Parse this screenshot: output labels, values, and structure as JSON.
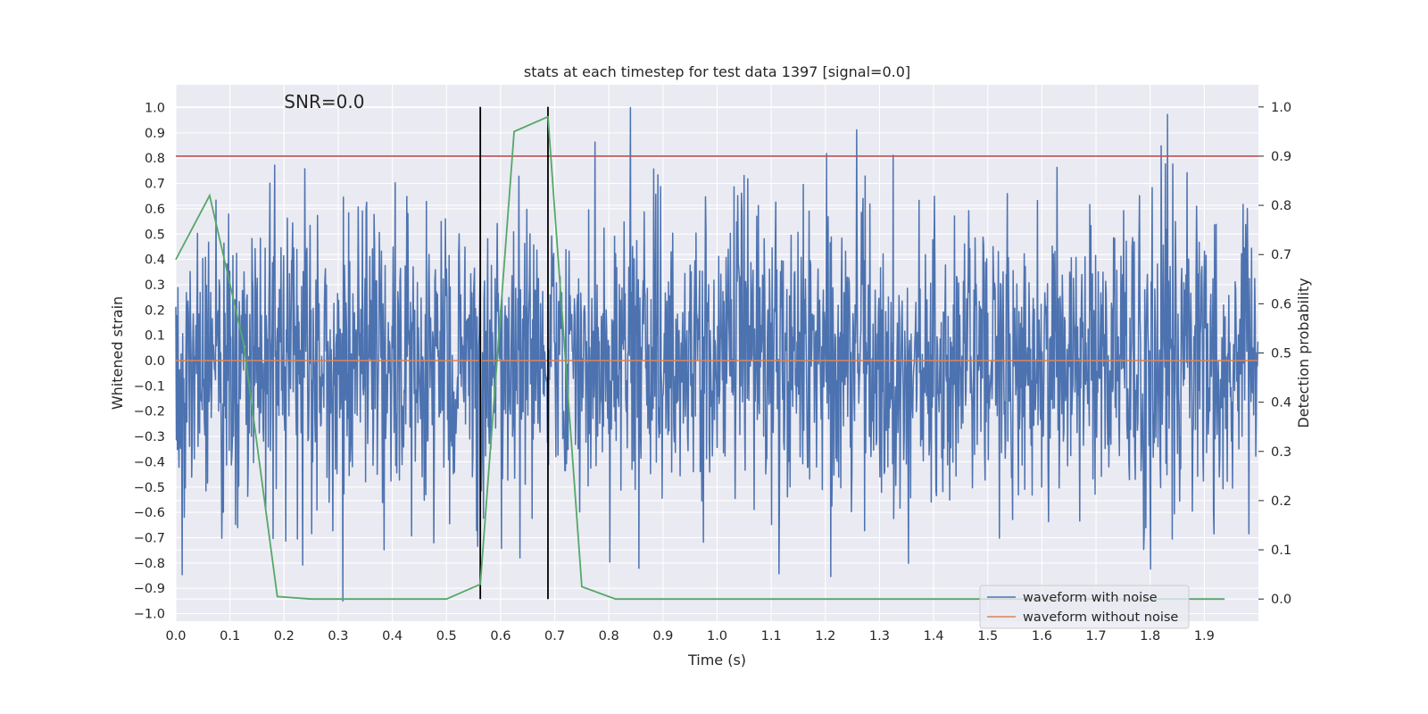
{
  "chart_data": {
    "type": "line",
    "title": "stats at each timestep for test data 1397 [signal=0.0]",
    "xlabel": "Time (s)",
    "ylabel": "Whitened strain",
    "y2label": "Detection probability",
    "xlim": [
      0.0,
      2.0
    ],
    "ylim": [
      -1.03,
      1.09
    ],
    "y2lim": [
      -0.045,
      1.045
    ],
    "xticks": [
      "0.0",
      "0.1",
      "0.2",
      "0.3",
      "0.4",
      "0.5",
      "0.6",
      "0.7",
      "0.8",
      "0.9",
      "1.0",
      "1.1",
      "1.2",
      "1.3",
      "1.4",
      "1.5",
      "1.6",
      "1.7",
      "1.8",
      "1.9"
    ],
    "yticks": [
      "1.0",
      "0.9",
      "0.8",
      "0.7",
      "0.6",
      "0.5",
      "0.4",
      "0.3",
      "0.2",
      "0.1",
      "0.0",
      "−0.1",
      "−0.2",
      "−0.3",
      "−0.4",
      "−0.5",
      "−0.6",
      "−0.7",
      "−0.8",
      "−0.9",
      "−1.0"
    ],
    "y2ticks": [
      "1.0",
      "0.9",
      "0.8",
      "0.7",
      "0.6",
      "0.5",
      "0.4",
      "0.3",
      "0.2",
      "0.1",
      "0.0"
    ],
    "grid": true,
    "legend_placement": "lower-right",
    "annotation": "SNR=0.0",
    "threshold": 0.9,
    "vlines": [
      0.5625,
      0.6875
    ],
    "series": [
      {
        "name": "waveform with noise",
        "color": "#4c72b0",
        "axis": "left",
        "noise_std": 0.3,
        "noise_seed": 1397,
        "noise_samples": 2048
      },
      {
        "name": "waveform without noise",
        "color": "#dd8452",
        "axis": "left",
        "x": [
          0.0,
          2.0
        ],
        "y": [
          0.0,
          0.0
        ]
      },
      {
        "color": "#55a868",
        "axis": "right",
        "x": [
          0.0,
          0.0625,
          0.125,
          0.1875,
          0.25,
          0.3125,
          0.375,
          0.4375,
          0.5,
          0.5625,
          0.625,
          0.6875,
          0.75,
          0.8125,
          0.875,
          0.9375,
          1.0,
          1.0625,
          1.125,
          1.1875,
          1.25,
          1.3125,
          1.375,
          1.4375,
          1.5,
          1.5625,
          1.625,
          1.6875,
          1.75,
          1.8125,
          1.875,
          1.9375
        ],
        "y": [
          0.69,
          0.82,
          0.52,
          0.005,
          0.0,
          0.0,
          0.0,
          0.0,
          0.0,
          0.03,
          0.95,
          0.98,
          0.025,
          0.0,
          0.0,
          0.0,
          0.0,
          0.0,
          0.0,
          0.0,
          0.0,
          0.0,
          0.0,
          0.0,
          0.0,
          0.0,
          0.0,
          0.0,
          0.0,
          0.0,
          0.0,
          0.0
        ]
      },
      {
        "color": "#c44e52",
        "axis": "right",
        "x": [
          0.0,
          2.0
        ],
        "y": [
          0.9,
          0.9
        ]
      }
    ]
  }
}
